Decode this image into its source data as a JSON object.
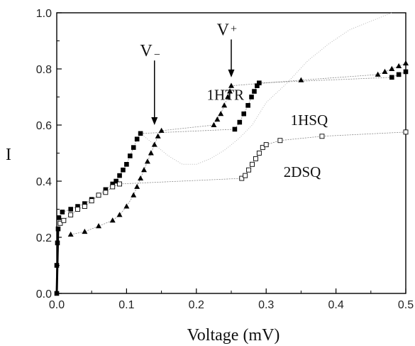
{
  "chart_data": {
    "type": "scatter",
    "title": "",
    "xlabel": "Voltage (mV)",
    "ylabel": "I",
    "xlim": [
      0.0,
      0.5
    ],
    "ylim": [
      0.0,
      1.0
    ],
    "xticks": [
      "0.0",
      "0.1",
      "0.2",
      "0.3",
      "0.4",
      "0.5"
    ],
    "yticks": [
      "0.0",
      "0.2",
      "0.4",
      "0.6",
      "0.8",
      "1.0"
    ],
    "grid": false,
    "legend": "none",
    "series": [
      {
        "name": "1HSQ",
        "marker": "filled-square",
        "color": "#000000",
        "points": [
          [
            0.0,
            0.0
          ],
          [
            0.0,
            0.1
          ],
          [
            0.001,
            0.18
          ],
          [
            0.002,
            0.23
          ],
          [
            0.003,
            0.27
          ],
          [
            0.008,
            0.29
          ],
          [
            0.02,
            0.3
          ],
          [
            0.03,
            0.31
          ],
          [
            0.04,
            0.32
          ],
          [
            0.05,
            0.335
          ],
          [
            0.06,
            0.35
          ],
          [
            0.07,
            0.37
          ],
          [
            0.08,
            0.39
          ],
          [
            0.085,
            0.4
          ],
          [
            0.09,
            0.42
          ],
          [
            0.095,
            0.44
          ],
          [
            0.1,
            0.46
          ],
          [
            0.105,
            0.49
          ],
          [
            0.11,
            0.52
          ],
          [
            0.115,
            0.55
          ],
          [
            0.12,
            0.57
          ],
          [
            0.255,
            0.585
          ],
          [
            0.262,
            0.61
          ],
          [
            0.268,
            0.64
          ],
          [
            0.274,
            0.67
          ],
          [
            0.279,
            0.7
          ],
          [
            0.283,
            0.72
          ],
          [
            0.287,
            0.74
          ],
          [
            0.29,
            0.75
          ],
          [
            0.48,
            0.77
          ],
          [
            0.49,
            0.78
          ],
          [
            0.5,
            0.79
          ]
        ]
      },
      {
        "name": "1HTR",
        "marker": "filled-triangle",
        "color": "#000000",
        "points": [
          [
            0.02,
            0.21
          ],
          [
            0.04,
            0.22
          ],
          [
            0.06,
            0.24
          ],
          [
            0.08,
            0.26
          ],
          [
            0.09,
            0.28
          ],
          [
            0.1,
            0.31
          ],
          [
            0.11,
            0.35
          ],
          [
            0.115,
            0.38
          ],
          [
            0.12,
            0.41
          ],
          [
            0.125,
            0.44
          ],
          [
            0.13,
            0.47
          ],
          [
            0.135,
            0.5
          ],
          [
            0.14,
            0.53
          ],
          [
            0.145,
            0.56
          ],
          [
            0.15,
            0.58
          ],
          [
            0.225,
            0.6
          ],
          [
            0.23,
            0.62
          ],
          [
            0.235,
            0.64
          ],
          [
            0.24,
            0.67
          ],
          [
            0.245,
            0.7
          ],
          [
            0.248,
            0.72
          ],
          [
            0.25,
            0.74
          ],
          [
            0.35,
            0.76
          ],
          [
            0.46,
            0.78
          ],
          [
            0.47,
            0.79
          ],
          [
            0.48,
            0.8
          ],
          [
            0.49,
            0.81
          ],
          [
            0.5,
            0.82
          ]
        ]
      },
      {
        "name": "2DSQ",
        "marker": "open-square",
        "color": "#000000",
        "points": [
          [
            0.005,
            0.25
          ],
          [
            0.01,
            0.26
          ],
          [
            0.02,
            0.28
          ],
          [
            0.03,
            0.3
          ],
          [
            0.04,
            0.31
          ],
          [
            0.05,
            0.33
          ],
          [
            0.06,
            0.35
          ],
          [
            0.07,
            0.36
          ],
          [
            0.08,
            0.38
          ],
          [
            0.09,
            0.39
          ],
          [
            0.265,
            0.41
          ],
          [
            0.27,
            0.42
          ],
          [
            0.275,
            0.44
          ],
          [
            0.28,
            0.46
          ],
          [
            0.285,
            0.48
          ],
          [
            0.29,
            0.5
          ],
          [
            0.295,
            0.52
          ],
          [
            0.3,
            0.53
          ],
          [
            0.32,
            0.545
          ],
          [
            0.38,
            0.56
          ],
          [
            0.5,
            0.575
          ]
        ]
      }
    ],
    "dotted_curve": {
      "color": "#b8b8b8",
      "points": [
        [
          0.12,
          0.57
        ],
        [
          0.14,
          0.53
        ],
        [
          0.16,
          0.49
        ],
        [
          0.18,
          0.46
        ],
        [
          0.2,
          0.46
        ],
        [
          0.22,
          0.48
        ],
        [
          0.24,
          0.51
        ],
        [
          0.26,
          0.55
        ],
        [
          0.28,
          0.6
        ],
        [
          0.3,
          0.68
        ],
        [
          0.33,
          0.75
        ],
        [
          0.36,
          0.83
        ],
        [
          0.39,
          0.89
        ],
        [
          0.42,
          0.94
        ],
        [
          0.45,
          0.97
        ],
        [
          0.48,
          1.0
        ]
      ]
    },
    "annotations": [
      {
        "text": "V",
        "sub": "−",
        "arrow_x": 0.14,
        "arrow_from_y": 0.83,
        "arrow_to_y": 0.6
      },
      {
        "text": "V",
        "sub": "+",
        "arrow_x": 0.25,
        "arrow_from_y": 0.905,
        "arrow_to_y": 0.77
      }
    ],
    "curve_labels": [
      {
        "text": "1HTR",
        "x": 0.215,
        "y": 0.69
      },
      {
        "text": "1HSQ",
        "x": 0.335,
        "y": 0.6
      },
      {
        "text": "2DSQ",
        "x": 0.325,
        "y": 0.415
      }
    ]
  }
}
